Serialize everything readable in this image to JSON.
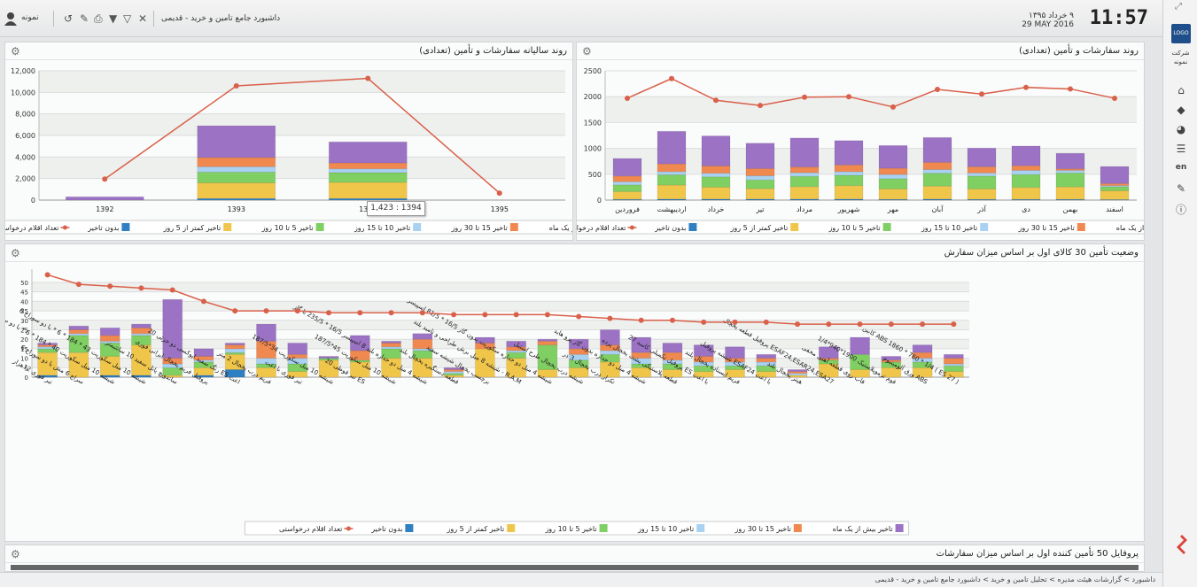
{
  "header": {
    "time": "11:57",
    "date_fa": "۹ خرداد ۱۳۹۵",
    "date_en": "29 MAY 2016",
    "app_title": "داشبورد جامع تامین و خرید - قدیمی",
    "user_name": "نمونه",
    "icons": [
      "history-icon",
      "edit-icon",
      "print-icon",
      "filter-icon",
      "filter-clear-icon",
      "filter-off-icon"
    ]
  },
  "sidebar": {
    "logo_text": "LOGO",
    "company": "شرکت نمونه",
    "items": [
      "home-icon",
      "layers-icon",
      "pie-icon",
      "list-icon",
      "en",
      "brush-icon",
      "help-icon"
    ],
    "lang_label": "en"
  },
  "footer": {
    "breadcrumb": "داشبورد > گزارشات هیئت مدیره > تحلیل تامین و خرید > داشبورد جامع تامین و خرید - قدیمی"
  },
  "legend": [
    {
      "name": "تاخیر بیش از یک ماه",
      "color": "#9b72c4"
    },
    {
      "name": "تاخیر 15 تا 30 روز",
      "color": "#f0894f"
    },
    {
      "name": "تاخیر 10 تا 15 روز",
      "color": "#a9d1f2"
    },
    {
      "name": "تاخیر 5 تا 10 روز",
      "color": "#7fcf63"
    },
    {
      "name": "تاخیر کمتر از 5 روز",
      "color": "#f0c64a"
    },
    {
      "name": "بدون تاخیر",
      "color": "#2f7fc3"
    },
    {
      "name": "تعداد اقلام درخواستی",
      "color": "#d9604a"
    }
  ],
  "panel_yearly": {
    "title": "روند سالیانه سفارشات و تأمین (تعدادی)",
    "tooltip": "1,423 : 1394",
    "chart_data": {
      "type": "bar",
      "categories": [
        "1392",
        "1393",
        "1394",
        "1395"
      ],
      "ylim": [
        0,
        12000
      ],
      "yticks": [
        "0",
        "2,000",
        "4,000",
        "6,000",
        "8,000",
        "10,000",
        "12,000"
      ],
      "series": [
        {
          "name": "بدون تاخیر",
          "values": [
            0,
            150,
            150,
            0
          ]
        },
        {
          "name": "تاخیر کمتر از 5 روز",
          "values": [
            0,
            1450,
            1500,
            0
          ]
        },
        {
          "name": "تاخیر 5 تا 10 روز",
          "values": [
            0,
            1000,
            900,
            0
          ]
        },
        {
          "name": "تاخیر 10 تا 15 روز",
          "values": [
            0,
            500,
            350,
            0
          ]
        },
        {
          "name": "تاخیر 15 تا 30 روز",
          "values": [
            0,
            850,
            550,
            0
          ]
        },
        {
          "name": "تاخیر بیش از یک ماه",
          "values": [
            300,
            2950,
            1950,
            0
          ]
        }
      ],
      "line": {
        "name": "تعداد اقلام درخواستی",
        "values": [
          1950,
          10600,
          11300,
          650
        ]
      }
    }
  },
  "panel_monthly": {
    "title": "روند سفارشات و تأمین (تعدادی)",
    "chart_data": {
      "type": "bar",
      "categories": [
        "فروردین",
        "اردیبهشت",
        "خرداد",
        "تیر",
        "مرداد",
        "شهریور",
        "مهر",
        "آبان",
        "آذر",
        "دی",
        "بهمن",
        "اسفند"
      ],
      "ylim": [
        0,
        2500
      ],
      "yticks": [
        "0",
        "500",
        "1000",
        "1500",
        "2000",
        "2500"
      ],
      "series": [
        {
          "name": "بدون تاخیر",
          "values": [
            15,
            20,
            20,
            20,
            20,
            20,
            15,
            20,
            15,
            15,
            15,
            10
          ]
        },
        {
          "name": "تاخیر کمتر از 5 روز",
          "values": [
            150,
            270,
            230,
            200,
            240,
            260,
            200,
            250,
            200,
            230,
            240,
            170
          ]
        },
        {
          "name": "تاخیر 5 تا 10 روز",
          "values": [
            130,
            200,
            200,
            170,
            200,
            200,
            200,
            250,
            250,
            250,
            270,
            80
          ]
        },
        {
          "name": "تاخیر 10 تا 15 روز",
          "values": [
            60,
            60,
            70,
            80,
            70,
            70,
            80,
            70,
            60,
            80,
            50,
            20
          ]
        },
        {
          "name": "تاخیر 15 تا 30 روز",
          "values": [
            110,
            150,
            140,
            140,
            110,
            130,
            120,
            140,
            120,
            90,
            30,
            40
          ]
        },
        {
          "name": "تاخیر بیش از یک ماه",
          "values": [
            340,
            630,
            580,
            490,
            560,
            470,
            440,
            480,
            360,
            380,
            300,
            330
          ]
        }
      ],
      "line": {
        "name": "تعداد اقلام درخواستی",
        "values": [
          1970,
          2350,
          1930,
          1830,
          1990,
          2000,
          1800,
          2140,
          2050,
          2180,
          2150,
          1970
        ]
      }
    }
  },
  "panel_top30": {
    "title": "وضعیت تأمین 30 کالای اول بر اساس میزان سفارش",
    "chart_data": {
      "type": "bar",
      "categories": [
        "تیر فوری 12هزار",
        "سراج 6 مش با دو سوراخ 6",
        "شیشه 10 میل سکوریت 40 * 184 * 6 * با دو سوراخ 6",
        "شیشه 10 میل سکوریت 43 * 184 * 6 * با دو سوراخ 6",
        "ساندویچ پانل سفید 10 سانتیمتر",
        "پروفیل فریم یخچال ایرانی فوری",
        "رنگ سفید اپوکسی دو جزئی 20 ES اعت",
        "فریم درب یخچال 2 متر",
        "تیر فوری با اعت",
        "شیشه 10 میل سکوریت 34*187/5",
        "تیر قوطی 20 ES",
        "شیشه 10 میل سکوریت 45*187/5",
        "شیشه 4 میل دو جداره بلند 8 اسپیسر 16/5 * 235/5 با گاز",
        "قطعه دستگیره یخچال بلند",
        "برچسب یخچال شیشه سفید",
        "شیشه 8 میل برش طراحی و تامید بلند - R.A.M",
        "شیشه 4 میل دو جداره سکوریت بدون گاز 16/5 * 81/5 اسپیسر",
        "شیشه درب یخچال طرح استیل",
        "تکرار درب یخچال 3 در",
        "شیشه 4 میل دو جداره بدون گاز پرو هاید",
        "قطعه پلاستیکی پشت یخچال پرده",
        "پروفیل تکمیلی کاسه 27 ES با اعت",
        "فریم ایستاده یخچال بلند",
        "شیشه پروفیل ESAF24 با اعت",
        "هیتر یخچال بلند",
        "پروفیل قطعه یخچال ESAF24,ESAR24,ESA27",
        "قاب روی قطعه آهنی مخفی",
        "فوم ترموپلاستیک 1900*940*1/4",
        "ورق آلومینیوم ABS",
        "کابین ABS 1860 * 760 * 1/4 ( ES 27 )"
      ],
      "yticks": [
        "0",
        "5",
        "10",
        "15",
        "20",
        "25",
        "30",
        "35",
        "40",
        "45",
        "50"
      ],
      "ylim": [
        0,
        57
      ],
      "series": [
        {
          "name": "بدون تاخیر",
          "values": [
            1,
            0,
            1,
            1,
            0,
            1,
            4,
            0,
            0,
            0,
            0,
            0,
            0,
            0,
            0,
            0,
            0,
            0,
            0,
            0,
            0,
            0,
            0,
            0,
            0,
            0,
            0,
            0,
            0,
            0
          ]
        },
        {
          "name": "تاخیر کمتر از 5 روز",
          "values": [
            12,
            13,
            10,
            16,
            1,
            4,
            8,
            5,
            3,
            9,
            8,
            10,
            10,
            1,
            15,
            10,
            4,
            5,
            8,
            5,
            4,
            3,
            4,
            3,
            1,
            7,
            4,
            5,
            5,
            3
          ]
        },
        {
          "name": "تاخیر 5 تا 10 روز",
          "values": [
            2,
            9,
            7,
            5,
            4,
            3,
            1,
            2,
            4,
            1,
            1,
            5,
            4,
            1,
            0,
            3,
            13,
            4,
            4,
            2,
            3,
            3,
            2,
            3,
            0,
            2,
            8,
            3,
            3,
            3
          ]
        },
        {
          "name": "تاخیر 10 تا 15 روز",
          "values": [
            1,
            1,
            1,
            1,
            2,
            1,
            2,
            3,
            3,
            0,
            0,
            1,
            1,
            1,
            0,
            1,
            0,
            3,
            2,
            3,
            2,
            2,
            2,
            2,
            1,
            0,
            0,
            0,
            2,
            1
          ]
        },
        {
          "name": "تاخیر 15 تا 30 روز",
          "values": [
            1,
            2,
            3,
            3,
            3,
            2,
            2,
            9,
            2,
            0,
            5,
            2,
            5,
            1,
            3,
            2,
            2,
            3,
            3,
            3,
            4,
            3,
            2,
            2,
            1,
            1,
            0,
            1,
            3,
            3
          ]
        },
        {
          "name": "تاخیر بیش از یک ماه",
          "values": [
            1,
            2,
            4,
            2,
            31,
            4,
            1,
            9,
            6,
            1,
            8,
            1,
            3,
            1,
            3,
            3,
            1,
            5,
            8,
            8,
            5,
            6,
            6,
            2,
            1,
            6,
            9,
            2,
            4,
            2
          ]
        }
      ],
      "line": {
        "name": "تعداد اقلام درخواستی",
        "values": [
          54,
          49,
          48,
          47,
          46,
          40,
          35,
          35,
          35,
          34,
          34,
          34,
          34,
          33,
          33,
          33,
          33,
          32,
          31,
          30,
          30,
          29,
          29,
          29,
          28,
          28,
          28,
          28,
          28,
          28
        ]
      }
    }
  },
  "panel_profile": {
    "title": "پروفایل 50 تأمین کننده اول بر اساس میزان سفارشات"
  }
}
